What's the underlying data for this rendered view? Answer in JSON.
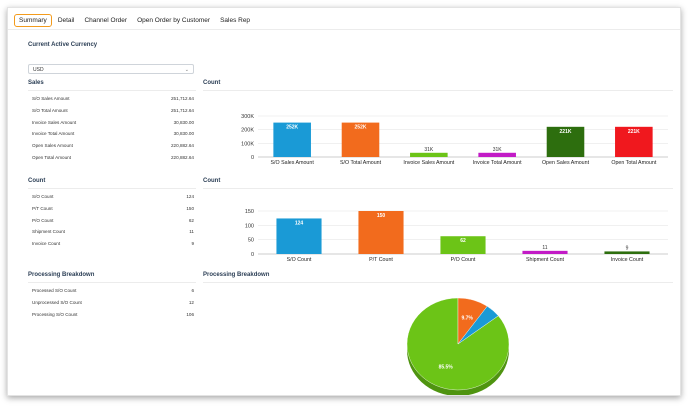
{
  "tabs": [
    {
      "label": "Summary",
      "active": true
    },
    {
      "label": "Detail",
      "active": false
    },
    {
      "label": "Channel Order",
      "active": false
    },
    {
      "label": "Open Order by Customer",
      "active": false
    },
    {
      "label": "Sales Rep",
      "active": false
    }
  ],
  "currency": {
    "heading": "Current Active Currency",
    "value": "USD"
  },
  "sales": {
    "heading": "Sales",
    "rows": [
      {
        "label": "S/O Sales Amount",
        "value": "251,712.64"
      },
      {
        "label": "S/O Total Amount",
        "value": "251,712.64"
      },
      {
        "label": "Invoice Sales Amount",
        "value": "30,830.00"
      },
      {
        "label": "Invoice Total Amount",
        "value": "30,830.00"
      },
      {
        "label": "Open Sales Amount",
        "value": "220,882.64"
      },
      {
        "label": "Open Total Amount",
        "value": "220,882.64"
      }
    ]
  },
  "count": {
    "heading": "Count",
    "rows": [
      {
        "label": "S/O Count",
        "value": "124"
      },
      {
        "label": "P/T Count",
        "value": "150"
      },
      {
        "label": "P/O Count",
        "value": "62"
      },
      {
        "label": "Shipment Count",
        "value": "11"
      },
      {
        "label": "Invoice Count",
        "value": "9"
      }
    ]
  },
  "processing": {
    "heading": "Processing Breakdown",
    "rows": [
      {
        "label": "Processed S/O Count",
        "value": "6"
      },
      {
        "label": "Unprocessed S/O Count",
        "value": "12"
      },
      {
        "label": "Processing S/O Count",
        "value": "106"
      }
    ]
  },
  "chart_headings": {
    "sales": "Count",
    "count": "Count",
    "processing": "Processing Breakdown"
  },
  "chart_data": [
    {
      "type": "bar",
      "categories": [
        "S/O Sales Amount",
        "S/O Total Amount",
        "Invoice Sales Amount",
        "Invoice Total Amount",
        "Open Sales Amount",
        "Open Total Amount"
      ],
      "values": [
        251712.64,
        251712.64,
        30830.0,
        30830.0,
        220882.64,
        220882.64
      ],
      "data_labels": [
        "252K",
        "252K",
        "31K",
        "31K",
        "221K",
        "221K"
      ],
      "colors": [
        "#1a9ad6",
        "#f26b1d",
        "#6cc417",
        "#c21bc6",
        "#2d6e0e",
        "#f0181e"
      ],
      "yticks": [
        "0",
        "100K",
        "200K",
        "300K"
      ],
      "ylim": [
        0,
        300000
      ]
    },
    {
      "type": "bar",
      "categories": [
        "S/O Count",
        "P/T Count",
        "P/O Count",
        "Shipment Count",
        "Invoice Count"
      ],
      "values": [
        124,
        150,
        62,
        11,
        9
      ],
      "data_labels": [
        "124",
        "150",
        "62",
        "11",
        "9"
      ],
      "colors": [
        "#1a9ad6",
        "#f26b1d",
        "#6cc417",
        "#c21bc6",
        "#2d6e0e"
      ],
      "yticks": [
        "0",
        "50",
        "100",
        "150"
      ],
      "ylim": [
        0,
        150
      ]
    },
    {
      "type": "pie",
      "values": [
        85.5,
        9.7,
        4.8
      ],
      "data_labels": [
        "85.5%",
        "9.7%",
        ""
      ],
      "colors": [
        "#6cc417",
        "#f26b1d",
        "#1a9ad6"
      ]
    }
  ]
}
